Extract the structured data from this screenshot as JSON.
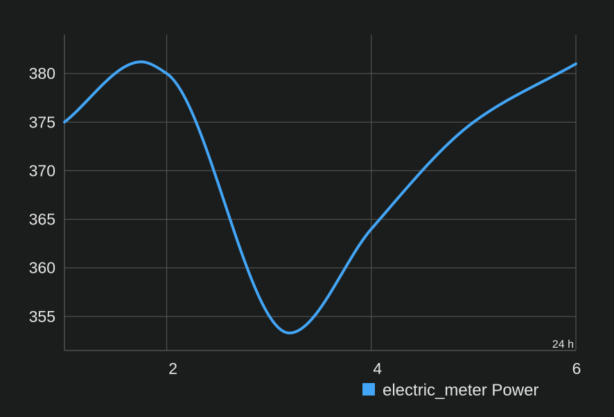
{
  "chart_data": {
    "type": "line",
    "xlim": [
      1,
      6
    ],
    "ylim": [
      351.5,
      384
    ],
    "xticks": [
      2,
      4,
      6
    ],
    "xtick_labels": [
      "2",
      "4",
      "6"
    ],
    "yticks": [
      355,
      360,
      365,
      370,
      375,
      380
    ],
    "ytick_labels": [
      "355",
      "360",
      "365",
      "370",
      "375",
      "380"
    ],
    "corner_label": "24 h",
    "grid": true,
    "legend_position": "bottom-right",
    "series": [
      {
        "name": "electric_meter Power",
        "color": "#42a5f5",
        "x": [
          1,
          1.75,
          2,
          3.2,
          4,
          5,
          6
        ],
        "y": [
          375,
          381.2,
          380,
          353.3,
          364,
          375,
          381
        ]
      }
    ]
  }
}
